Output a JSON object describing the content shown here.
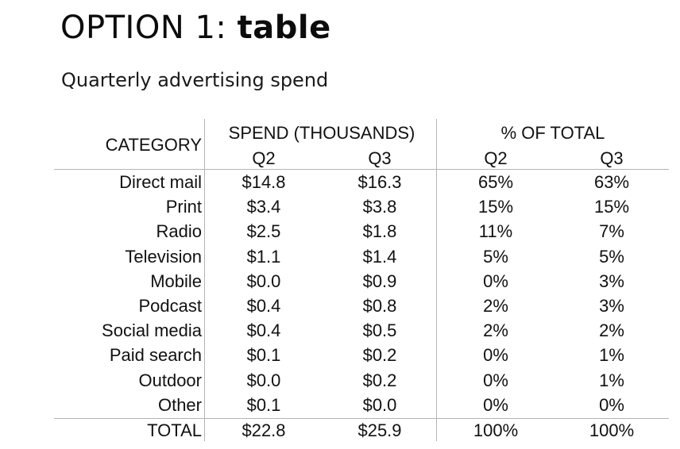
{
  "title": {
    "prefix": "OPTION 1: ",
    "emphasis": "table"
  },
  "subtitle": "Quarterly advertising spend",
  "chart_data": {
    "type": "table",
    "column_headers": {
      "category": "CATEGORY",
      "groups": [
        {
          "label": "SPEND (THOUSANDS)",
          "subcolumns": [
            "Q2",
            "Q3"
          ]
        },
        {
          "label": "% OF TOTAL",
          "subcolumns": [
            "Q2",
            "Q3"
          ]
        }
      ]
    },
    "rows": [
      {
        "category": "Direct mail",
        "spend_q2": "$14.8",
        "spend_q3": "$16.3",
        "pct_q2": "65%",
        "pct_q3": "63%"
      },
      {
        "category": "Print",
        "spend_q2": "$3.4",
        "spend_q3": "$3.8",
        "pct_q2": "15%",
        "pct_q3": "15%"
      },
      {
        "category": "Radio",
        "spend_q2": "$2.5",
        "spend_q3": "$1.8",
        "pct_q2": "11%",
        "pct_q3": "7%"
      },
      {
        "category": "Television",
        "spend_q2": "$1.1",
        "spend_q3": "$1.4",
        "pct_q2": "5%",
        "pct_q3": "5%"
      },
      {
        "category": "Mobile",
        "spend_q2": "$0.0",
        "spend_q3": "$0.9",
        "pct_q2": "0%",
        "pct_q3": "3%"
      },
      {
        "category": "Podcast",
        "spend_q2": "$0.4",
        "spend_q3": "$0.8",
        "pct_q2": "2%",
        "pct_q3": "3%"
      },
      {
        "category": "Social media",
        "spend_q2": "$0.4",
        "spend_q3": "$0.5",
        "pct_q2": "2%",
        "pct_q3": "2%"
      },
      {
        "category": "Paid search",
        "spend_q2": "$0.1",
        "spend_q3": "$0.2",
        "pct_q2": "0%",
        "pct_q3": "1%"
      },
      {
        "category": "Outdoor",
        "spend_q2": "$0.0",
        "spend_q3": "$0.2",
        "pct_q2": "0%",
        "pct_q3": "1%"
      },
      {
        "category": "Other",
        "spend_q2": "$0.1",
        "spend_q3": "$0.0",
        "pct_q2": "0%",
        "pct_q3": "0%"
      }
    ],
    "total": {
      "category": "TOTAL",
      "spend_q2": "$22.8",
      "spend_q3": "$25.9",
      "pct_q2": "100%",
      "pct_q3": "100%"
    }
  }
}
